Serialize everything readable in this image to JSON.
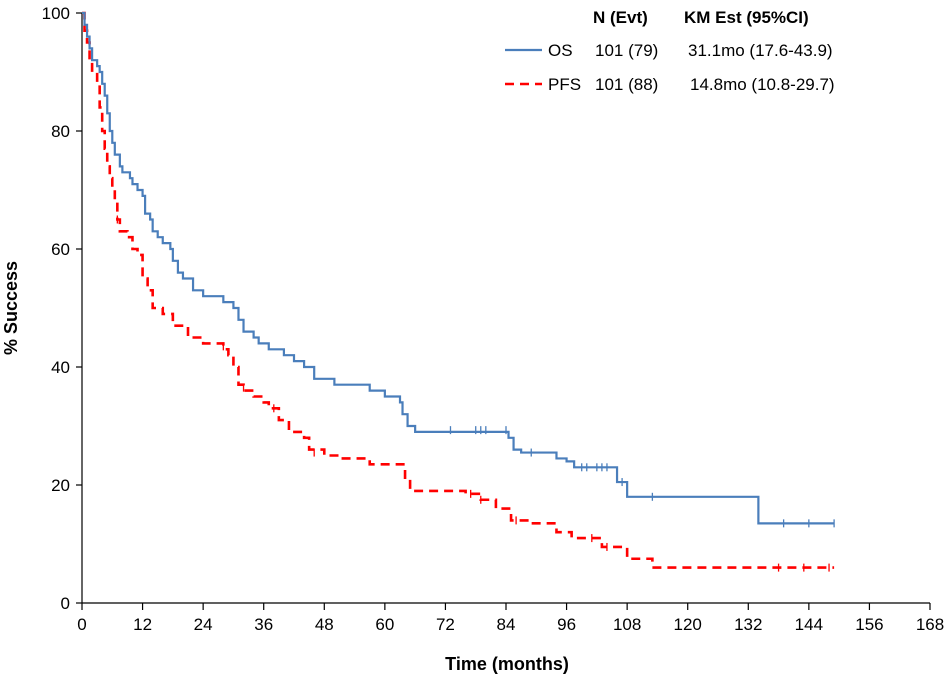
{
  "chart_data": {
    "type": "line",
    "title": "",
    "xlabel": "Time (months)",
    "ylabel": "% Success",
    "xlim": [
      0,
      168
    ],
    "ylim": [
      0,
      100
    ],
    "x_ticks": [
      0,
      12,
      24,
      36,
      48,
      60,
      72,
      84,
      96,
      108,
      120,
      132,
      144,
      156,
      168
    ],
    "y_ticks": [
      0,
      20,
      40,
      60,
      80,
      100
    ],
    "grid": false,
    "legend": {
      "placement": "top-right",
      "header_n": "N (Evt)",
      "header_km": "KM Est (95%CI)",
      "entries": [
        {
          "name": "OS",
          "n_evt": "101 (79)",
          "km_est": "31.1mo (17.6-43.9)"
        },
        {
          "name": "PFS",
          "n_evt": "101 (88)",
          "km_est": "14.8mo (10.8-29.7)"
        }
      ]
    },
    "series": [
      {
        "name": "OS",
        "color": "#4a7ebb",
        "dash": "solid",
        "steps": [
          [
            0,
            100
          ],
          [
            0.5,
            98
          ],
          [
            1,
            96
          ],
          [
            1.5,
            94
          ],
          [
            2,
            92
          ],
          [
            3,
            91
          ],
          [
            3.5,
            90
          ],
          [
            4,
            88
          ],
          [
            4.5,
            86
          ],
          [
            5,
            83
          ],
          [
            5.5,
            80
          ],
          [
            6,
            78
          ],
          [
            6.5,
            76
          ],
          [
            7.5,
            74
          ],
          [
            8,
            73
          ],
          [
            9.5,
            72
          ],
          [
            10,
            71
          ],
          [
            11,
            70
          ],
          [
            12,
            69
          ],
          [
            12.5,
            66
          ],
          [
            13.5,
            65
          ],
          [
            14,
            63
          ],
          [
            15,
            62
          ],
          [
            16,
            61
          ],
          [
            17.5,
            60
          ],
          [
            18,
            58
          ],
          [
            19,
            56
          ],
          [
            20,
            55
          ],
          [
            22,
            53
          ],
          [
            24,
            52
          ],
          [
            28,
            51
          ],
          [
            30,
            50
          ],
          [
            31,
            48
          ],
          [
            32,
            46
          ],
          [
            34,
            45
          ],
          [
            35,
            44
          ],
          [
            37,
            43
          ],
          [
            40,
            42
          ],
          [
            42,
            41
          ],
          [
            44,
            40
          ],
          [
            46,
            38
          ],
          [
            50,
            37
          ],
          [
            57,
            36
          ],
          [
            60,
            35
          ],
          [
            63,
            34
          ],
          [
            63.5,
            32
          ],
          [
            64.5,
            30
          ],
          [
            66,
            29
          ],
          [
            84.5,
            28
          ],
          [
            85.5,
            26
          ],
          [
            87,
            25.5
          ],
          [
            94,
            24.5
          ],
          [
            96,
            24
          ],
          [
            97.5,
            23
          ],
          [
            106,
            20.5
          ],
          [
            108,
            18
          ],
          [
            134,
            13.5
          ],
          [
            149,
            13.5
          ]
        ],
        "censored": [
          [
            73,
            29.3
          ],
          [
            78,
            29.3
          ],
          [
            79,
            29.3
          ],
          [
            80,
            29.3
          ],
          [
            84,
            29.3
          ],
          [
            89,
            25.5
          ],
          [
            99,
            23
          ],
          [
            100,
            23
          ],
          [
            102,
            23
          ],
          [
            103,
            23
          ],
          [
            104,
            23
          ],
          [
            107,
            20.5
          ],
          [
            113,
            18
          ],
          [
            139,
            13.5
          ],
          [
            144,
            13.5
          ],
          [
            149,
            13.5
          ]
        ]
      },
      {
        "name": "PFS",
        "color": "#ff0000",
        "dash": "dashed",
        "steps": [
          [
            0,
            100
          ],
          [
            0.5,
            97
          ],
          [
            1,
            95
          ],
          [
            1.5,
            92
          ],
          [
            2,
            90
          ],
          [
            3,
            88
          ],
          [
            3.5,
            84
          ],
          [
            4,
            80
          ],
          [
            4.5,
            77
          ],
          [
            5,
            74
          ],
          [
            5.5,
            72
          ],
          [
            6,
            70
          ],
          [
            6.5,
            68
          ],
          [
            7,
            65
          ],
          [
            7.5,
            63
          ],
          [
            9,
            62
          ],
          [
            10,
            60
          ],
          [
            11,
            59
          ],
          [
            12,
            55
          ],
          [
            13,
            53
          ],
          [
            14,
            50
          ],
          [
            16,
            49
          ],
          [
            18,
            47
          ],
          [
            21,
            45
          ],
          [
            24,
            44
          ],
          [
            28,
            43
          ],
          [
            29,
            42
          ],
          [
            30,
            40
          ],
          [
            31,
            37
          ],
          [
            32,
            36
          ],
          [
            34,
            35
          ],
          [
            36,
            34
          ],
          [
            37,
            33
          ],
          [
            39,
            31
          ],
          [
            41,
            29
          ],
          [
            44,
            28
          ],
          [
            45,
            26
          ],
          [
            48,
            25
          ],
          [
            51,
            24.5
          ],
          [
            57,
            23.5
          ],
          [
            64,
            21
          ],
          [
            65,
            19
          ],
          [
            76,
            18.5
          ],
          [
            79,
            17.5
          ],
          [
            82,
            16
          ],
          [
            85,
            14
          ],
          [
            89,
            13.5
          ],
          [
            94,
            12
          ],
          [
            97,
            11
          ],
          [
            103,
            9.5
          ],
          [
            108,
            7.5
          ],
          [
            113,
            6
          ],
          [
            149,
            6
          ]
        ],
        "censored": [
          [
            7,
            65
          ],
          [
            28,
            43.5
          ],
          [
            32,
            36.5
          ],
          [
            38,
            33
          ],
          [
            46,
            25.5
          ],
          [
            77,
            18.5
          ],
          [
            79,
            17.5
          ],
          [
            86,
            14
          ],
          [
            101,
            11
          ],
          [
            104,
            9.5
          ],
          [
            138,
            6
          ],
          [
            143,
            6
          ],
          [
            148,
            6
          ]
        ]
      }
    ]
  }
}
